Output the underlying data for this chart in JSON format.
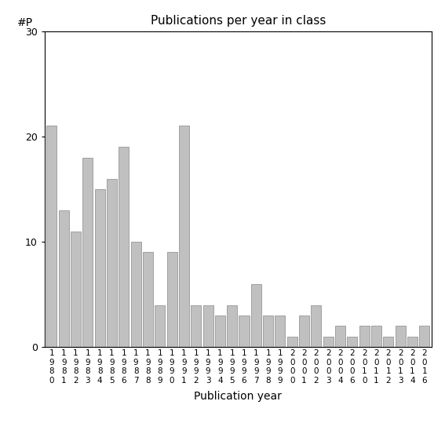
{
  "title": "Publications per year in class",
  "xlabel": "Publication year",
  "ylabel": "#P",
  "bar_color": "#c0c0c0",
  "bar_edgecolor": "#888888",
  "ylim": [
    0,
    30
  ],
  "yticks": [
    0,
    10,
    20,
    30
  ],
  "categories": [
    "1980",
    "1981",
    "1982",
    "1983",
    "1984",
    "1985",
    "1986",
    "1987",
    "1988",
    "1989",
    "1990",
    "1991",
    "1992",
    "1993",
    "1994",
    "1995",
    "1996",
    "1997",
    "1998",
    "1999",
    "2000",
    "2001",
    "2002",
    "2003",
    "2004",
    "2006",
    "2010",
    "2011",
    "2012",
    "2013",
    "2014",
    "2016"
  ],
  "values": [
    21,
    13,
    11,
    18,
    15,
    16,
    19,
    10,
    9,
    4,
    9,
    21,
    4,
    4,
    3,
    4,
    3,
    6,
    3,
    3,
    1,
    3,
    4,
    1,
    2,
    1,
    2,
    2,
    1,
    2,
    1,
    2
  ]
}
